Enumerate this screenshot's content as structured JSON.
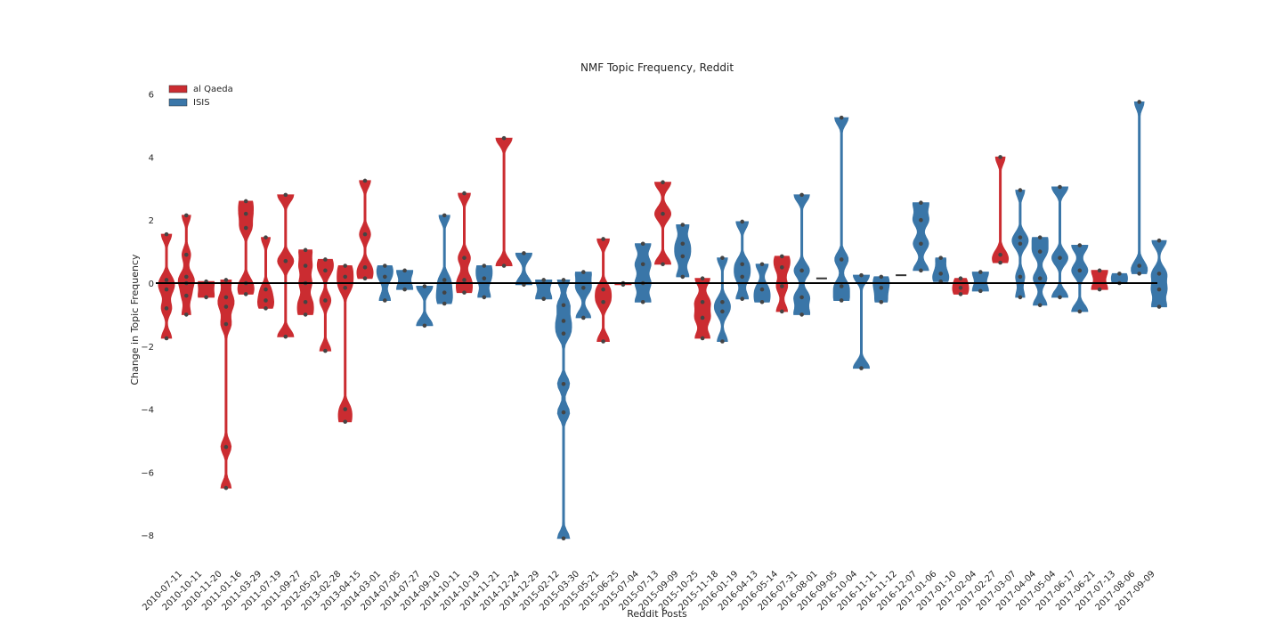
{
  "chart_data": {
    "type": "violin",
    "title": "NMF Topic Frequency, Reddit",
    "xlabel": "Reddit Posts",
    "ylabel": "Change in Topic Frequency",
    "ylim": [
      -8.5,
      6.6
    ],
    "yticks": [
      6,
      4,
      2,
      0,
      -2,
      -4,
      -6,
      -8
    ],
    "ytick_labels": [
      "6",
      "4",
      "2",
      "0",
      "−2",
      "−4",
      "−6",
      "−8"
    ],
    "grid": false,
    "legend_position": "top-left",
    "zero_line": true,
    "colors": {
      "al Qaeda": "#cb2c31",
      "ISIS": "#3a76a8",
      "point": "#444444",
      "zero_line": "#000000"
    },
    "series_names": [
      "al Qaeda",
      "ISIS"
    ],
    "categories": [
      {
        "label": "2010-07-11",
        "group": "al Qaeda",
        "points": [
          1.55,
          0.1,
          -0.2,
          -0.8,
          -1.75
        ]
      },
      {
        "label": "2010-10-11",
        "group": "al Qaeda",
        "points": [
          2.15,
          0.9,
          0.2,
          0.0,
          -0.4,
          -1.0
        ]
      },
      {
        "label": "2010-11-20",
        "group": "al Qaeda",
        "points": [
          0.05,
          -0.45
        ]
      },
      {
        "label": "2011-01-16",
        "group": "al Qaeda",
        "points": [
          0.1,
          -0.45,
          -0.75,
          -1.3,
          -5.2,
          -6.5
        ]
      },
      {
        "label": "2011-03-29",
        "group": "al Qaeda",
        "points": [
          2.6,
          2.2,
          1.75,
          0.0,
          -0.35
        ]
      },
      {
        "label": "2011-07-19",
        "group": "al Qaeda",
        "points": [
          1.45,
          -0.2,
          -0.55,
          -0.8
        ]
      },
      {
        "label": "2011-09-27",
        "group": "al Qaeda",
        "points": [
          2.8,
          0.7,
          -1.7
        ]
      },
      {
        "label": "2012-05-02",
        "group": "al Qaeda",
        "points": [
          1.05,
          0.55,
          0.0,
          -0.6,
          -1.0
        ]
      },
      {
        "label": "2013-02-28",
        "group": "al Qaeda",
        "points": [
          0.75,
          0.4,
          -0.55,
          -2.15
        ]
      },
      {
        "label": "2013-04-15",
        "group": "al Qaeda",
        "points": [
          0.55,
          0.2,
          -0.15,
          -4.0,
          -4.4
        ]
      },
      {
        "label": "2014-03-01",
        "group": "al Qaeda",
        "points": [
          3.25,
          1.55,
          0.5,
          0.15
        ]
      },
      {
        "label": "2014-07-05",
        "group": "ISIS",
        "points": [
          0.55,
          0.2,
          -0.55
        ]
      },
      {
        "label": "2014-07-27",
        "group": "ISIS",
        "points": [
          0.4,
          -0.2
        ]
      },
      {
        "label": "2014-09-10",
        "group": "ISIS",
        "points": [
          -0.1,
          -1.35
        ]
      },
      {
        "label": "2014-10-11",
        "group": "ISIS",
        "points": [
          2.15,
          0.1,
          -0.3,
          -0.65
        ]
      },
      {
        "label": "2014-10-19",
        "group": "al Qaeda",
        "points": [
          2.85,
          0.8,
          0.1,
          -0.3
        ]
      },
      {
        "label": "2014-11-21",
        "group": "ISIS",
        "points": [
          0.55,
          0.15,
          -0.45
        ]
      },
      {
        "label": "2014-12-24",
        "group": "al Qaeda",
        "points": [
          4.6,
          0.55
        ]
      },
      {
        "label": "2014-12-29",
        "group": "ISIS",
        "points": [
          0.95,
          -0.05
        ]
      },
      {
        "label": "2015-02-12",
        "group": "ISIS",
        "points": [
          0.1,
          -0.5
        ]
      },
      {
        "label": "2015-03-30",
        "group": "ISIS",
        "points": [
          0.1,
          -0.7,
          -1.2,
          -1.6,
          -3.2,
          -4.1,
          -8.1
        ]
      },
      {
        "label": "2015-05-21",
        "group": "ISIS",
        "points": [
          0.35,
          -0.15,
          -1.1
        ]
      },
      {
        "label": "2015-06-25",
        "group": "al Qaeda",
        "points": [
          1.4,
          -0.2,
          -0.6,
          -1.85
        ]
      },
      {
        "label": "2015-07-04",
        "group": "al Qaeda",
        "points": [
          0.0,
          -0.05
        ]
      },
      {
        "label": "2015-07-13",
        "group": "ISIS",
        "points": [
          1.25,
          0.6,
          0.0,
          -0.6
        ]
      },
      {
        "label": "2015-09-09",
        "group": "al Qaeda",
        "points": [
          3.2,
          2.2,
          0.6
        ]
      },
      {
        "label": "2015-10-25",
        "group": "ISIS",
        "points": [
          1.85,
          1.25,
          0.85,
          0.2
        ]
      },
      {
        "label": "2015-11-18",
        "group": "al Qaeda",
        "points": [
          0.15,
          -0.6,
          -1.1,
          -1.75
        ]
      },
      {
        "label": "2016-01-19",
        "group": "ISIS",
        "points": [
          0.8,
          -0.6,
          -0.9,
          -1.85
        ]
      },
      {
        "label": "2016-04-13",
        "group": "ISIS",
        "points": [
          1.95,
          0.6,
          0.2,
          -0.5
        ]
      },
      {
        "label": "2016-05-14",
        "group": "ISIS",
        "points": [
          0.6,
          -0.2,
          -0.6
        ]
      },
      {
        "label": "2016-07-31",
        "group": "al Qaeda",
        "points": [
          0.85,
          0.5,
          -0.1,
          -0.9
        ]
      },
      {
        "label": "2016-08-01",
        "group": "ISIS",
        "points": [
          2.8,
          0.4,
          -0.45,
          -1.0
        ]
      },
      {
        "label": "2016-09-05",
        "group": "ISIS",
        "points": [
          0.15
        ]
      },
      {
        "label": "2016-10-04",
        "group": "ISIS",
        "points": [
          5.25,
          0.75,
          -0.1,
          -0.55
        ]
      },
      {
        "label": "2016-11-11",
        "group": "ISIS",
        "points": [
          0.25,
          -2.7
        ]
      },
      {
        "label": "2016-11-12",
        "group": "ISIS",
        "points": [
          0.2,
          -0.15,
          -0.6
        ]
      },
      {
        "label": "2016-12-07",
        "group": "ISIS",
        "points": [
          0.25
        ]
      },
      {
        "label": "2017-01-06",
        "group": "ISIS",
        "points": [
          2.55,
          2.0,
          1.25,
          0.4
        ]
      },
      {
        "label": "2017-01-10",
        "group": "ISIS",
        "points": [
          0.8,
          0.3,
          0.05
        ]
      },
      {
        "label": "2017-02-04",
        "group": "al Qaeda",
        "points": [
          0.15,
          -0.15,
          -0.35
        ]
      },
      {
        "label": "2017-02-27",
        "group": "ISIS",
        "points": [
          0.35,
          -0.25
        ]
      },
      {
        "label": "2017-03-07",
        "group": "al Qaeda",
        "points": [
          4.0,
          0.9,
          0.65
        ]
      },
      {
        "label": "2017-04-04",
        "group": "ISIS",
        "points": [
          2.95,
          1.45,
          1.25,
          0.2,
          -0.45
        ]
      },
      {
        "label": "2017-05-04",
        "group": "ISIS",
        "points": [
          1.45,
          1.0,
          0.15,
          -0.7
        ]
      },
      {
        "label": "2017-06-17",
        "group": "ISIS",
        "points": [
          3.05,
          0.8,
          -0.45
        ]
      },
      {
        "label": "2017-06-21",
        "group": "ISIS",
        "points": [
          1.2,
          0.4,
          -0.9
        ]
      },
      {
        "label": "2017-07-13",
        "group": "al Qaeda",
        "points": [
          0.4,
          -0.2
        ]
      },
      {
        "label": "2017-08-06",
        "group": "ISIS",
        "points": [
          0.3,
          0.0
        ]
      },
      {
        "label": "2017-09-09",
        "group": "ISIS",
        "points": [
          5.75,
          0.55,
          0.3
        ]
      },
      {
        "label": "",
        "group": "ISIS",
        "points": [
          1.35,
          0.3,
          -0.2,
          -0.75
        ]
      }
    ]
  }
}
